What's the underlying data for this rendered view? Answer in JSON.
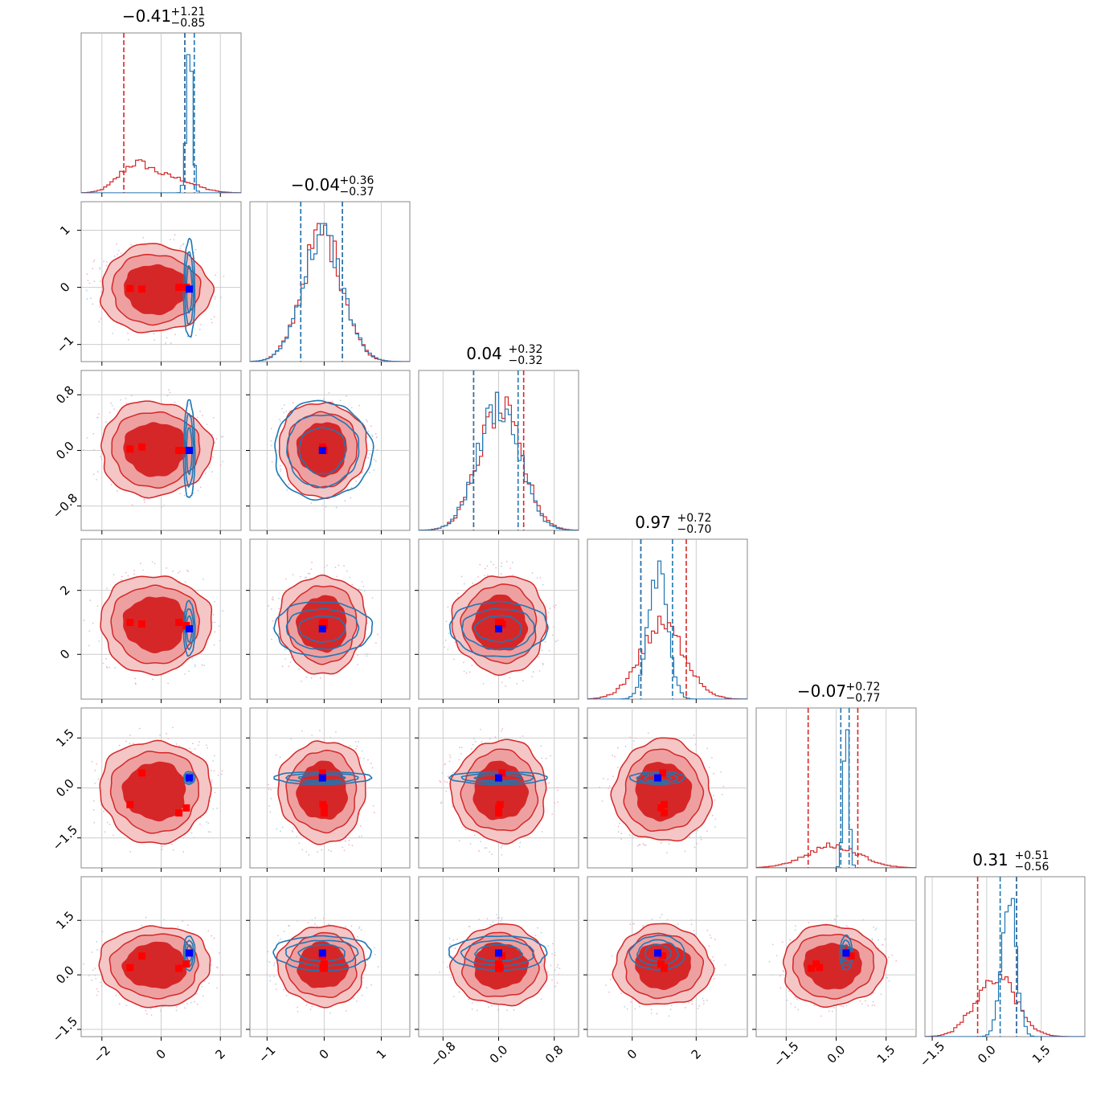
{
  "chart_data": {
    "type": "corner",
    "n_params": 6,
    "colors": {
      "red": "#d62728",
      "blue": "#1f77b4",
      "red_fill_light": "#eea0a0",
      "blue_marker": "#0000ff",
      "red_marker": "#ff0000",
      "grid": "#cccccc"
    },
    "titles": [
      {
        "median": "−0.41",
        "plus": "+1.21",
        "minus": "−0.85"
      },
      {
        "median": "−0.04",
        "plus": "+0.36",
        "minus": "−0.37"
      },
      {
        "median": "0.04",
        "plus": "+0.32",
        "minus": "−0.32"
      },
      {
        "median": "0.97",
        "plus": "+0.72",
        "minus": "−0.70"
      },
      {
        "median": "−0.07",
        "plus": "+0.72",
        "minus": "−0.77"
      },
      {
        "median": "0.31",
        "plus": "+0.51",
        "minus": "−0.56"
      }
    ],
    "ranges": [
      [
        -2.7,
        2.7
      ],
      [
        -1.3,
        1.5
      ],
      [
        -1.15,
        1.15
      ],
      [
        -1.4,
        3.6
      ],
      [
        -2.4,
        2.4
      ],
      [
        -1.7,
        2.7
      ]
    ],
    "ticks": [
      {
        "values": [
          -2,
          0,
          2
        ],
        "labels": [
          "−2",
          "0",
          "2"
        ]
      },
      {
        "values": [
          -1,
          0,
          1
        ],
        "labels": [
          "−1",
          "0",
          "1"
        ]
      },
      {
        "values": [
          -0.8,
          0.0,
          0.8
        ],
        "labels": [
          "−0.8",
          "0.0",
          "0.8"
        ]
      },
      {
        "values": [
          0,
          2
        ],
        "labels": [
          "0",
          "2"
        ]
      },
      {
        "values": [
          -1.5,
          0.0,
          1.5
        ],
        "labels": [
          "−1.5",
          "0.0",
          "1.5"
        ]
      },
      {
        "values": [
          -1.5,
          0.0,
          1.5
        ],
        "labels": [
          "−1.5",
          "0.0",
          "1.5"
        ]
      }
    ],
    "red_quantile_lines": [
      [
        -1.26,
        0.8
      ],
      [
        -0.41,
        0.32
      ],
      [
        -0.36,
        0.36
      ],
      [
        0.27,
        1.69
      ],
      [
        -0.84,
        0.65
      ],
      [
        -0.25,
        0.82
      ]
    ],
    "blue_quantile_lines": [
      [
        0.8,
        1.12
      ],
      [
        -0.41,
        0.32
      ],
      [
        -0.36,
        0.28
      ],
      [
        0.27,
        1.26
      ],
      [
        0.14,
        0.39
      ],
      [
        0.37,
        0.82
      ]
    ],
    "red_hist": [
      {
        "mixture": [
          [
            -0.9,
            0.55,
            1.0
          ],
          [
            0.35,
            0.75,
            0.55
          ]
        ]
      },
      {
        "mixture": [
          [
            -0.03,
            0.35,
            1.0
          ]
        ]
      },
      {
        "mixture": [
          [
            0.02,
            0.31,
            1.0
          ]
        ]
      },
      {
        "mixture": [
          [
            0.95,
            0.7,
            1.0
          ]
        ]
      },
      {
        "mixture": [
          [
            -0.1,
            0.8,
            1.0
          ]
        ]
      },
      {
        "mixture": [
          [
            0.25,
            0.55,
            1.0
          ]
        ]
      }
    ],
    "blue_hist": [
      {
        "mixture": [
          [
            0.95,
            0.1,
            1.0
          ]
        ]
      },
      {
        "mixture": [
          [
            -0.03,
            0.35,
            1.0
          ]
        ]
      },
      {
        "mixture": [
          [
            0.0,
            0.3,
            1.0
          ]
        ]
      },
      {
        "mixture": [
          [
            0.8,
            0.3,
            1.0
          ]
        ]
      },
      {
        "mixture": [
          [
            0.3,
            0.08,
            1.0
          ]
        ]
      },
      {
        "mixture": [
          [
            0.6,
            0.2,
            1.0
          ]
        ]
      }
    ],
    "red_width": [
      1.1,
      0.45,
      0.4,
      0.9,
      0.9,
      0.65
    ],
    "blue_width": [
      0.1,
      0.45,
      0.37,
      0.45,
      0.1,
      0.25
    ],
    "red_points": [
      [
        -1.05,
        -0.02,
        0.02,
        1.0,
        -0.5,
        0.2
      ],
      [
        -0.65,
        -0.03,
        0.05,
        0.95,
        0.45,
        0.52
      ],
      [
        0.6,
        0.0,
        0.0,
        1.0,
        -0.75,
        0.18
      ],
      [
        0.85,
        0.0,
        0.0,
        0.9,
        -0.6,
        0.3
      ]
    ],
    "blue_points": [
      [
        0.95,
        -0.03,
        0.0,
        0.8,
        0.3,
        0.6
      ]
    ]
  }
}
